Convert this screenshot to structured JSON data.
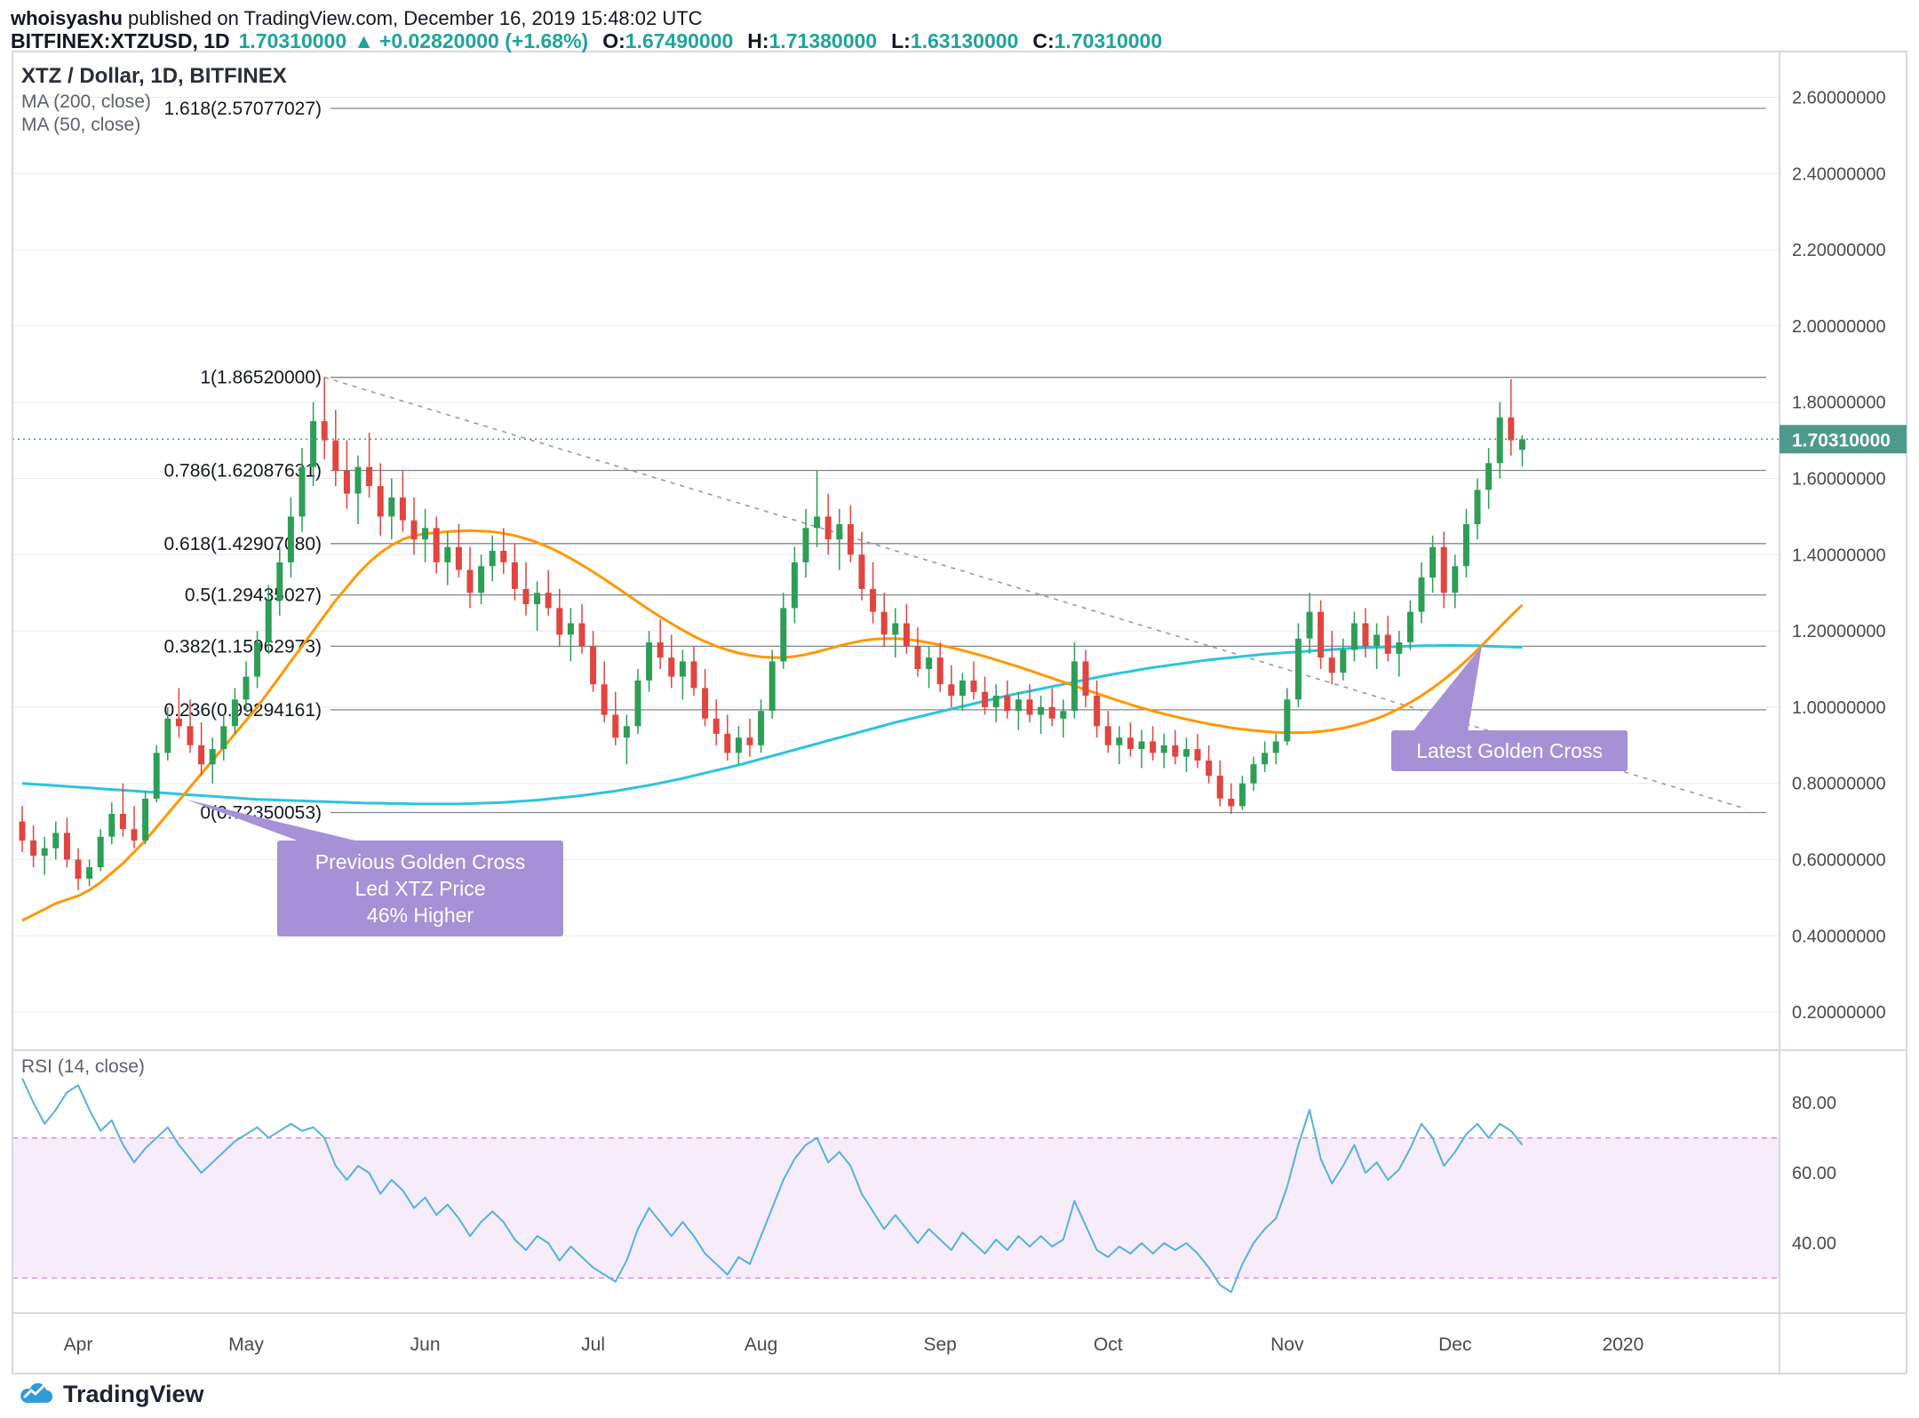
{
  "header": {
    "author": "whoisyashu",
    "published_text": " published on TradingView.com, December 16, 2019 15:48:02 UTC",
    "symbol": "BITFINEX:XTZUSD, 1D",
    "last_price": "1.70310000",
    "change_arrow": "▲",
    "change_text": "+0.02820000 (+1.68%)",
    "o_label": "O:",
    "o": "1.67490000",
    "h_label": "H:",
    "h": "1.71380000",
    "l_label": "L:",
    "l": "1.63130000",
    "c_label": "C:",
    "c": "1.70310000"
  },
  "legend": {
    "main_title": "XTZ / Dollar, 1D, BITFINEX",
    "ma200_label": "MA (200, close)",
    "ma50_label": "MA (50, close)",
    "rsi_label": "RSI (14, close)"
  },
  "callouts": {
    "latest": "Latest Golden Cross",
    "previous_line1": "Previous Golden Cross",
    "previous_line2": "Led XTZ Price",
    "previous_line3": "46% Higher"
  },
  "footer": {
    "brand": "TradingView"
  },
  "colors": {
    "up": "#2e9e57",
    "down": "#e04540",
    "ma50": "#ff9800",
    "ma200": "#2bc4dc",
    "rsi_line": "#55b1e0",
    "rsi_band_fill": "#f6ecfa",
    "rsi_band_border": "#d393dd",
    "fib_line": "#82858f",
    "grid": "#e9e9e9",
    "trendline": "#9b9b9b",
    "price_line": "#4d9a8c",
    "badge_bg": "#4d9a8c",
    "badge_text": "#ffffff",
    "axis_text": "#4a4a4a",
    "accent_teal": "#1fa39c",
    "callout_bg": "#a691d6",
    "border": "#d6d9e0"
  },
  "chart_data": {
    "type": "candlestick",
    "title": "XTZ / Dollar, 1D, BITFINEX",
    "symbol": "XTZUSD",
    "exchange": "BITFINEX",
    "interval": "1D",
    "x_axis": {
      "labels": [
        {
          "label": "Apr",
          "i": 5
        },
        {
          "label": "May",
          "i": 20
        },
        {
          "label": "Jun",
          "i": 36
        },
        {
          "label": "Jul",
          "i": 51
        },
        {
          "label": "Aug",
          "i": 66
        },
        {
          "label": "Sep",
          "i": 82
        },
        {
          "label": "Oct",
          "i": 97
        },
        {
          "label": "Nov",
          "i": 113
        },
        {
          "label": "Dec",
          "i": 128
        },
        {
          "label": "2020",
          "i": 143
        }
      ]
    },
    "price_axis": {
      "min": 0.1,
      "max": 2.72,
      "ticks": [
        {
          "v": 2.6,
          "label": "2.60000000"
        },
        {
          "v": 2.4,
          "label": "2.40000000"
        },
        {
          "v": 2.2,
          "label": "2.20000000"
        },
        {
          "v": 2.0,
          "label": "2.00000000"
        },
        {
          "v": 1.8,
          "label": "1.80000000"
        },
        {
          "v": 1.6,
          "label": "1.60000000"
        },
        {
          "v": 1.4,
          "label": "1.40000000"
        },
        {
          "v": 1.2,
          "label": "1.20000000"
        },
        {
          "v": 1.0,
          "label": "1.00000000"
        },
        {
          "v": 0.8,
          "label": "0.80000000"
        },
        {
          "v": 0.6,
          "label": "0.60000000"
        },
        {
          "v": 0.4,
          "label": "0.40000000"
        },
        {
          "v": 0.2,
          "label": "0.20000000"
        }
      ]
    },
    "current_price": 1.7031,
    "current_price_label": "1.70310000",
    "fib_levels": [
      {
        "label": "1.618(2.57077027)",
        "value": 2.57077027
      },
      {
        "label": "1(1.86520000)",
        "value": 1.8652
      },
      {
        "label": "0.786(1.62087631)",
        "value": 1.62087631
      },
      {
        "label": "0.618(1.42907080)",
        "value": 1.4290708
      },
      {
        "label": "0.5(1.29435027)",
        "value": 1.29435027
      },
      {
        "label": "0.382(1.15962973)",
        "value": 1.15962973
      },
      {
        "label": "0.236(0.99294161)",
        "value": 0.99294161
      },
      {
        "label": "0(0.72350053)",
        "value": 0.72350053
      }
    ],
    "trendline": {
      "from": {
        "i": 27,
        "price": 1.8652
      },
      "to": {
        "i": 154,
        "price": 0.733
      }
    },
    "annotations": {
      "previous_anchor": {
        "i": 14.6,
        "price": 0.758
      },
      "latest_anchor": {
        "i": 130.4,
        "price": 1.161
      }
    },
    "candles": [
      [
        0.7,
        0.74,
        0.62,
        0.65
      ],
      [
        0.65,
        0.69,
        0.58,
        0.61
      ],
      [
        0.61,
        0.66,
        0.56,
        0.63
      ],
      [
        0.63,
        0.7,
        0.6,
        0.67
      ],
      [
        0.67,
        0.71,
        0.58,
        0.6
      ],
      [
        0.6,
        0.63,
        0.52,
        0.55
      ],
      [
        0.55,
        0.6,
        0.53,
        0.58
      ],
      [
        0.58,
        0.68,
        0.57,
        0.66
      ],
      [
        0.66,
        0.75,
        0.64,
        0.72
      ],
      [
        0.72,
        0.8,
        0.66,
        0.68
      ],
      [
        0.68,
        0.74,
        0.63,
        0.65
      ],
      [
        0.65,
        0.78,
        0.64,
        0.76
      ],
      [
        0.76,
        0.9,
        0.75,
        0.88
      ],
      [
        0.88,
        1.0,
        0.86,
        0.97
      ],
      [
        0.97,
        1.05,
        0.92,
        0.95
      ],
      [
        0.95,
        1.02,
        0.88,
        0.9
      ],
      [
        0.9,
        0.96,
        0.82,
        0.85
      ],
      [
        0.85,
        0.92,
        0.8,
        0.89
      ],
      [
        0.89,
        0.98,
        0.86,
        0.95
      ],
      [
        0.95,
        1.05,
        0.93,
        1.02
      ],
      [
        1.02,
        1.12,
        0.99,
        1.08
      ],
      [
        1.08,
        1.2,
        1.05,
        1.17
      ],
      [
        1.17,
        1.32,
        1.14,
        1.28
      ],
      [
        1.28,
        1.42,
        1.24,
        1.38
      ],
      [
        1.38,
        1.55,
        1.34,
        1.5
      ],
      [
        1.5,
        1.68,
        1.46,
        1.63
      ],
      [
        1.63,
        1.8,
        1.58,
        1.75
      ],
      [
        1.75,
        1.8652,
        1.65,
        1.7
      ],
      [
        1.7,
        1.78,
        1.58,
        1.62
      ],
      [
        1.62,
        1.7,
        1.52,
        1.56
      ],
      [
        1.56,
        1.66,
        1.48,
        1.63
      ],
      [
        1.63,
        1.72,
        1.55,
        1.58
      ],
      [
        1.58,
        1.64,
        1.45,
        1.5
      ],
      [
        1.5,
        1.6,
        1.44,
        1.55
      ],
      [
        1.55,
        1.62,
        1.46,
        1.49
      ],
      [
        1.49,
        1.55,
        1.4,
        1.44
      ],
      [
        1.44,
        1.52,
        1.38,
        1.47
      ],
      [
        1.47,
        1.5,
        1.35,
        1.38
      ],
      [
        1.38,
        1.46,
        1.32,
        1.42
      ],
      [
        1.42,
        1.48,
        1.34,
        1.36
      ],
      [
        1.36,
        1.42,
        1.26,
        1.3
      ],
      [
        1.3,
        1.4,
        1.27,
        1.37
      ],
      [
        1.37,
        1.45,
        1.33,
        1.41
      ],
      [
        1.41,
        1.47,
        1.35,
        1.38
      ],
      [
        1.38,
        1.43,
        1.28,
        1.31
      ],
      [
        1.31,
        1.38,
        1.24,
        1.27
      ],
      [
        1.27,
        1.33,
        1.2,
        1.3
      ],
      [
        1.3,
        1.36,
        1.24,
        1.26
      ],
      [
        1.26,
        1.31,
        1.16,
        1.19
      ],
      [
        1.19,
        1.26,
        1.12,
        1.22
      ],
      [
        1.22,
        1.27,
        1.14,
        1.16
      ],
      [
        1.16,
        1.2,
        1.04,
        1.06
      ],
      [
        1.06,
        1.12,
        0.96,
        0.98
      ],
      [
        0.98,
        1.04,
        0.9,
        0.92
      ],
      [
        0.92,
        0.98,
        0.85,
        0.95
      ],
      [
        0.95,
        1.1,
        0.93,
        1.07
      ],
      [
        1.07,
        1.2,
        1.04,
        1.17
      ],
      [
        1.17,
        1.23,
        1.1,
        1.13
      ],
      [
        1.13,
        1.19,
        1.05,
        1.08
      ],
      [
        1.08,
        1.15,
        1.02,
        1.12
      ],
      [
        1.12,
        1.16,
        1.03,
        1.05
      ],
      [
        1.05,
        1.1,
        0.95,
        0.97
      ],
      [
        0.97,
        1.02,
        0.9,
        0.93
      ],
      [
        0.93,
        0.98,
        0.86,
        0.88
      ],
      [
        0.88,
        0.95,
        0.85,
        0.92
      ],
      [
        0.92,
        0.97,
        0.87,
        0.9
      ],
      [
        0.9,
        1.02,
        0.88,
        0.99
      ],
      [
        0.99,
        1.15,
        0.97,
        1.12
      ],
      [
        1.12,
        1.3,
        1.1,
        1.26
      ],
      [
        1.26,
        1.42,
        1.22,
        1.38
      ],
      [
        1.38,
        1.52,
        1.34,
        1.47
      ],
      [
        1.47,
        1.62,
        1.42,
        1.5
      ],
      [
        1.5,
        1.56,
        1.4,
        1.44
      ],
      [
        1.44,
        1.52,
        1.36,
        1.48
      ],
      [
        1.48,
        1.53,
        1.38,
        1.4
      ],
      [
        1.4,
        1.46,
        1.28,
        1.31
      ],
      [
        1.31,
        1.38,
        1.22,
        1.25
      ],
      [
        1.25,
        1.3,
        1.16,
        1.19
      ],
      [
        1.19,
        1.26,
        1.13,
        1.22
      ],
      [
        1.22,
        1.27,
        1.14,
        1.16
      ],
      [
        1.16,
        1.21,
        1.08,
        1.1
      ],
      [
        1.1,
        1.16,
        1.05,
        1.13
      ],
      [
        1.13,
        1.17,
        1.04,
        1.06
      ],
      [
        1.06,
        1.11,
        1.0,
        1.03
      ],
      [
        1.03,
        1.09,
        0.99,
        1.07
      ],
      [
        1.07,
        1.12,
        1.02,
        1.04
      ],
      [
        1.04,
        1.08,
        0.98,
        1.0
      ],
      [
        1.0,
        1.06,
        0.96,
        1.03
      ],
      [
        1.03,
        1.07,
        0.97,
        0.99
      ],
      [
        0.99,
        1.04,
        0.94,
        1.02
      ],
      [
        1.02,
        1.06,
        0.96,
        0.98
      ],
      [
        0.98,
        1.03,
        0.93,
        1.0
      ],
      [
        1.0,
        1.05,
        0.95,
        0.97
      ],
      [
        0.97,
        1.02,
        0.92,
        0.99
      ],
      [
        0.99,
        1.17,
        0.97,
        1.12
      ],
      [
        1.12,
        1.15,
        1.0,
        1.03
      ],
      [
        1.03,
        1.07,
        0.92,
        0.95
      ],
      [
        0.95,
        0.99,
        0.88,
        0.9
      ],
      [
        0.9,
        0.95,
        0.85,
        0.92
      ],
      [
        0.92,
        0.96,
        0.87,
        0.89
      ],
      [
        0.89,
        0.94,
        0.84,
        0.91
      ],
      [
        0.91,
        0.95,
        0.86,
        0.88
      ],
      [
        0.88,
        0.93,
        0.84,
        0.9
      ],
      [
        0.9,
        0.94,
        0.85,
        0.87
      ],
      [
        0.87,
        0.92,
        0.83,
        0.89
      ],
      [
        0.89,
        0.93,
        0.84,
        0.86
      ],
      [
        0.86,
        0.9,
        0.8,
        0.82
      ],
      [
        0.82,
        0.86,
        0.74,
        0.76
      ],
      [
        0.76,
        0.8,
        0.72,
        0.74
      ],
      [
        0.74,
        0.82,
        0.73,
        0.8
      ],
      [
        0.8,
        0.87,
        0.78,
        0.85
      ],
      [
        0.85,
        0.91,
        0.83,
        0.88
      ],
      [
        0.88,
        0.93,
        0.85,
        0.91
      ],
      [
        0.91,
        1.05,
        0.9,
        1.02
      ],
      [
        1.02,
        1.22,
        1.0,
        1.18
      ],
      [
        1.18,
        1.3,
        1.14,
        1.25
      ],
      [
        1.25,
        1.28,
        1.1,
        1.13
      ],
      [
        1.13,
        1.2,
        1.06,
        1.09
      ],
      [
        1.09,
        1.18,
        1.07,
        1.15
      ],
      [
        1.15,
        1.25,
        1.12,
        1.22
      ],
      [
        1.22,
        1.26,
        1.13,
        1.16
      ],
      [
        1.16,
        1.22,
        1.1,
        1.19
      ],
      [
        1.19,
        1.24,
        1.12,
        1.14
      ],
      [
        1.14,
        1.2,
        1.08,
        1.17
      ],
      [
        1.17,
        1.28,
        1.15,
        1.25
      ],
      [
        1.25,
        1.38,
        1.22,
        1.34
      ],
      [
        1.34,
        1.45,
        1.3,
        1.42
      ],
      [
        1.42,
        1.46,
        1.26,
        1.3
      ],
      [
        1.3,
        1.4,
        1.26,
        1.37
      ],
      [
        1.37,
        1.52,
        1.34,
        1.48
      ],
      [
        1.48,
        1.6,
        1.44,
        1.57
      ],
      [
        1.57,
        1.68,
        1.52,
        1.64
      ],
      [
        1.64,
        1.8,
        1.6,
        1.76
      ],
      [
        1.76,
        1.86,
        1.66,
        1.7
      ],
      [
        1.6749,
        1.7138,
        1.6313,
        1.7031
      ]
    ],
    "ma50": [
      0.44,
      0.455,
      0.47,
      0.485,
      0.495,
      0.505,
      0.52,
      0.54,
      0.565,
      0.59,
      0.62,
      0.65,
      0.685,
      0.72,
      0.755,
      0.79,
      0.825,
      0.86,
      0.895,
      0.93,
      0.965,
      1.0,
      1.04,
      1.08,
      1.12,
      1.16,
      1.2,
      1.24,
      1.28,
      1.315,
      1.35,
      1.38,
      1.405,
      1.425,
      1.44,
      1.45,
      1.455,
      1.458,
      1.46,
      1.462,
      1.463,
      1.462,
      1.46,
      1.456,
      1.45,
      1.442,
      1.432,
      1.42,
      1.406,
      1.39,
      1.373,
      1.355,
      1.336,
      1.316,
      1.296,
      1.276,
      1.256,
      1.237,
      1.219,
      1.202,
      1.186,
      1.172,
      1.16,
      1.15,
      1.142,
      1.136,
      1.132,
      1.13,
      1.13,
      1.133,
      1.138,
      1.145,
      1.153,
      1.161,
      1.168,
      1.174,
      1.178,
      1.18,
      1.18,
      1.178,
      1.174,
      1.169,
      1.163,
      1.156,
      1.149,
      1.141,
      1.133,
      1.124,
      1.115,
      1.106,
      1.096,
      1.086,
      1.076,
      1.066,
      1.056,
      1.046,
      1.036,
      1.026,
      1.016,
      1.007,
      0.998,
      0.99,
      0.982,
      0.975,
      0.968,
      0.962,
      0.956,
      0.951,
      0.946,
      0.942,
      0.939,
      0.936,
      0.934,
      0.933,
      0.933,
      0.934,
      0.936,
      0.94,
      0.945,
      0.952,
      0.96,
      0.97,
      0.982,
      0.996,
      1.012,
      1.03,
      1.05,
      1.072,
      1.096,
      1.122,
      1.15,
      1.18,
      1.21,
      1.24,
      1.268
    ],
    "ma200": [
      0.8,
      0.798,
      0.796,
      0.794,
      0.792,
      0.79,
      0.788,
      0.786,
      0.784,
      0.782,
      0.78,
      0.778,
      0.776,
      0.774,
      0.772,
      0.77,
      0.768,
      0.766,
      0.764,
      0.762,
      0.76,
      0.758,
      0.757,
      0.756,
      0.755,
      0.754,
      0.753,
      0.752,
      0.751,
      0.75,
      0.749,
      0.748,
      0.748,
      0.747,
      0.747,
      0.746,
      0.746,
      0.746,
      0.746,
      0.746,
      0.747,
      0.748,
      0.749,
      0.75,
      0.752,
      0.754,
      0.756,
      0.759,
      0.762,
      0.765,
      0.768,
      0.772,
      0.776,
      0.78,
      0.785,
      0.79,
      0.795,
      0.801,
      0.807,
      0.813,
      0.82,
      0.827,
      0.834,
      0.841,
      0.848,
      0.856,
      0.864,
      0.872,
      0.88,
      0.888,
      0.896,
      0.904,
      0.912,
      0.92,
      0.928,
      0.936,
      0.944,
      0.952,
      0.96,
      0.967,
      0.974,
      0.981,
      0.988,
      0.995,
      1.002,
      1.009,
      1.016,
      1.023,
      1.03,
      1.036,
      1.042,
      1.048,
      1.054,
      1.06,
      1.066,
      1.072,
      1.078,
      1.084,
      1.089,
      1.094,
      1.099,
      1.104,
      1.108,
      1.112,
      1.116,
      1.12,
      1.124,
      1.127,
      1.13,
      1.133,
      1.136,
      1.139,
      1.141,
      1.143,
      1.145,
      1.147,
      1.149,
      1.151,
      1.153,
      1.155,
      1.156,
      1.157,
      1.158,
      1.159,
      1.16,
      1.161,
      1.161,
      1.162,
      1.162,
      1.161,
      1.161,
      1.16,
      1.159,
      1.158,
      1.157
    ],
    "rsi": {
      "scale_max": 95,
      "scale_min": 20,
      "upper_band": 70,
      "lower_band": 30,
      "label_ticks": [
        {
          "v": 80,
          "label": "80.00"
        },
        {
          "v": 60,
          "label": "60.00"
        },
        {
          "v": 40,
          "label": "40.00"
        }
      ],
      "values": [
        87,
        80,
        74,
        78,
        83,
        85,
        78,
        72,
        75,
        68,
        63,
        67,
        70,
        73,
        68,
        64,
        60,
        63,
        66,
        69,
        71,
        73,
        70,
        72,
        74,
        72,
        73,
        70,
        62,
        58,
        62,
        60,
        54,
        58,
        55,
        50,
        53,
        48,
        51,
        47,
        42,
        46,
        49,
        46,
        41,
        38,
        42,
        40,
        35,
        39,
        36,
        33,
        31,
        29,
        35,
        44,
        50,
        46,
        42,
        46,
        42,
        37,
        34,
        31,
        36,
        34,
        42,
        50,
        58,
        64,
        68,
        70,
        63,
        66,
        62,
        54,
        49,
        44,
        48,
        44,
        40,
        44,
        41,
        38,
        43,
        40,
        37,
        41,
        38,
        42,
        39,
        42,
        39,
        41,
        52,
        45,
        38,
        36,
        39,
        37,
        40,
        37,
        40,
        38,
        40,
        37,
        33,
        28,
        26,
        34,
        40,
        44,
        47,
        56,
        68,
        78,
        64,
        57,
        62,
        68,
        60,
        63,
        58,
        61,
        67,
        74,
        70,
        62,
        66,
        71,
        74,
        70,
        74,
        72,
        68
      ]
    }
  }
}
